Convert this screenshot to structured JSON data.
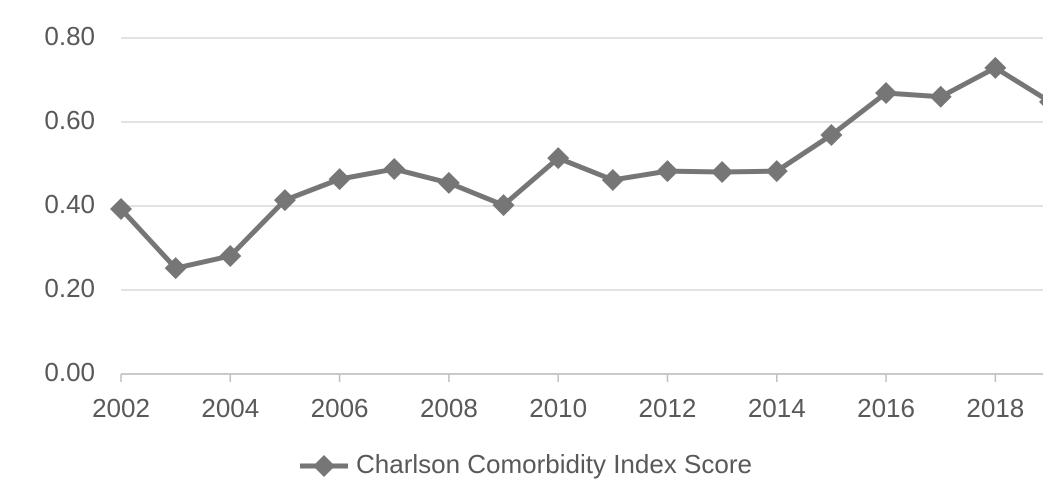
{
  "chart_data": {
    "type": "line",
    "x": [
      2002,
      2003,
      2004,
      2005,
      2006,
      2007,
      2008,
      2009,
      2010,
      2011,
      2012,
      2013,
      2014,
      2015,
      2016,
      2017,
      2018,
      2019
    ],
    "series": [
      {
        "name": "Charlson Comorbidity Index Score",
        "color": "#767676",
        "values": [
          0.393,
          0.252,
          0.281,
          0.414,
          0.464,
          0.488,
          0.455,
          0.402,
          0.514,
          0.462,
          0.483,
          0.481,
          0.483,
          0.569,
          0.669,
          0.66,
          0.729,
          0.648
        ]
      }
    ],
    "xlim": [
      2002,
      2019
    ],
    "xticks": [
      2002,
      2004,
      2006,
      2008,
      2010,
      2012,
      2014,
      2016,
      2018
    ],
    "ylim": [
      0,
      0.8
    ],
    "yticks": [
      {
        "value": 0,
        "label": "0.00"
      },
      {
        "value": 0.2,
        "label": "0.20"
      },
      {
        "value": 0.4,
        "label": "0.40"
      },
      {
        "value": 0.6,
        "label": "0.60"
      },
      {
        "value": 0.8,
        "label": "0.80"
      }
    ],
    "grid": true,
    "legend": "bottom"
  }
}
